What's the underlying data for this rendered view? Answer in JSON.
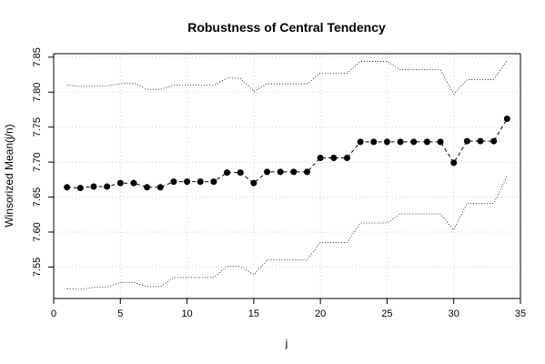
{
  "chart_data": {
    "type": "line",
    "title": "Robustness of Central Tendency",
    "xlabel": "j",
    "ylabel": "Winsorized Mean(j/n)",
    "xlim": [
      0,
      35
    ],
    "ylim": [
      7.505,
      7.855
    ],
    "xticks": [
      0,
      5,
      10,
      15,
      20,
      25,
      30,
      35
    ],
    "yticks": [
      7.55,
      7.6,
      7.65,
      7.7,
      7.75,
      7.8,
      7.85
    ],
    "ytick_labels": [
      "7.55",
      "7.60",
      "7.65",
      "7.70",
      "7.75",
      "7.80",
      "7.85"
    ],
    "grid": true,
    "x": [
      1,
      2,
      3,
      4,
      5,
      6,
      7,
      8,
      9,
      10,
      11,
      12,
      13,
      14,
      15,
      16,
      17,
      18,
      19,
      20,
      21,
      22,
      23,
      24,
      25,
      26,
      27,
      28,
      29,
      30,
      31,
      32,
      33,
      34
    ],
    "series": [
      {
        "style": "points-dashed",
        "values": [
          7.664,
          7.663,
          7.665,
          7.665,
          7.67,
          7.67,
          7.664,
          7.664,
          7.672,
          7.672,
          7.672,
          7.672,
          7.685,
          7.685,
          7.67,
          7.686,
          7.686,
          7.686,
          7.686,
          7.706,
          7.706,
          7.706,
          7.729,
          7.729,
          7.729,
          7.729,
          7.729,
          7.729,
          7.729,
          7.699,
          7.73,
          7.73,
          7.73,
          7.762
        ]
      },
      {
        "style": "dotted",
        "values": [
          7.81,
          7.808,
          7.809,
          7.809,
          7.812,
          7.813,
          7.804,
          7.804,
          7.81,
          7.81,
          7.81,
          7.81,
          7.82,
          7.82,
          7.801,
          7.812,
          7.812,
          7.812,
          7.812,
          7.827,
          7.827,
          7.827,
          7.844,
          7.844,
          7.844,
          7.832,
          7.832,
          7.832,
          7.832,
          7.797,
          7.818,
          7.818,
          7.818,
          7.845
        ]
      },
      {
        "style": "dotted",
        "values": [
          7.519,
          7.518,
          7.521,
          7.521,
          7.528,
          7.528,
          7.522,
          7.522,
          7.535,
          7.535,
          7.535,
          7.535,
          7.551,
          7.551,
          7.539,
          7.56,
          7.56,
          7.56,
          7.56,
          7.585,
          7.585,
          7.585,
          7.613,
          7.613,
          7.613,
          7.626,
          7.626,
          7.626,
          7.626,
          7.603,
          7.641,
          7.641,
          7.641,
          7.68
        ]
      }
    ]
  }
}
